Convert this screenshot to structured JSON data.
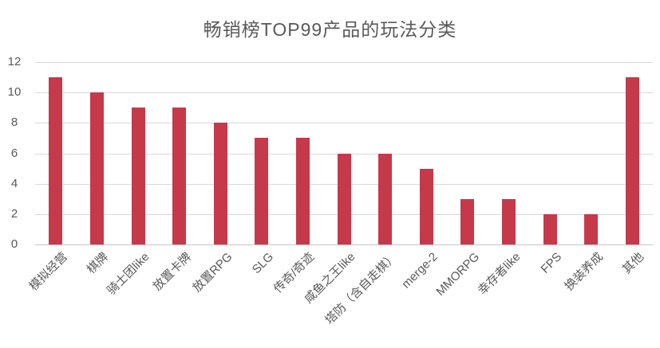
{
  "chart": {
    "title": "畅销榜TOP99产品的玩法分类",
    "colors": {
      "bar": "#c6394b",
      "gridline": "#d9d9d9",
      "axis_line": "#c6c6c6",
      "tick_text": "#595959",
      "title_text": "#595959",
      "background": "#ffffff"
    }
  },
  "chart_data": {
    "type": "bar",
    "title": "畅销榜TOP99产品的玩法分类",
    "categories": [
      "模拟经营",
      "棋牌",
      "骑士团like",
      "放置卡牌",
      "放置RPG",
      "SLG",
      "传奇/奇迹",
      "咸鱼之王like",
      "塔防（含自走棋）",
      "merge-2",
      "MMORPG",
      "幸存者like",
      "FPS",
      "换装养成",
      "其他"
    ],
    "values": [
      11,
      10,
      9,
      9,
      8,
      7,
      7,
      6,
      6,
      5,
      3,
      3,
      2,
      2,
      11
    ],
    "xlabel": "",
    "ylabel": "",
    "ylim": [
      0,
      12
    ],
    "yticks": [
      0,
      2,
      4,
      6,
      8,
      10,
      12
    ],
    "grid": "horizontal",
    "legend": "none",
    "bar_color": "#c6394b"
  }
}
